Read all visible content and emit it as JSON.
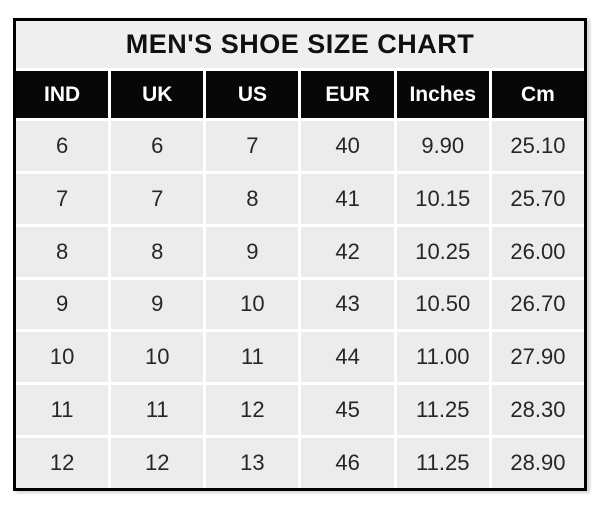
{
  "chart_data": {
    "type": "table",
    "title": "MEN'S SHOE SIZE CHART",
    "columns": [
      "IND",
      "UK",
      "US",
      "EUR",
      "Inches",
      "Cm"
    ],
    "rows": [
      [
        "6",
        "6",
        "7",
        "40",
        "9.90",
        "25.10"
      ],
      [
        "7",
        "7",
        "8",
        "41",
        "10.15",
        "25.70"
      ],
      [
        "8",
        "8",
        "9",
        "42",
        "10.25",
        "26.00"
      ],
      [
        "9",
        "9",
        "10",
        "43",
        "10.50",
        "26.70"
      ],
      [
        "10",
        "10",
        "11",
        "44",
        "11.00",
        "27.90"
      ],
      [
        "11",
        "11",
        "12",
        "45",
        "11.25",
        "28.30"
      ],
      [
        "12",
        "12",
        "13",
        "46",
        "11.25",
        "28.90"
      ]
    ],
    "layout": {
      "grid": "on",
      "legend": "none"
    },
    "colors": {
      "border": "#000000",
      "title_bg": "#efefef",
      "header_bg": "#070707",
      "header_text": "#ffffff",
      "row_bg": "#ececec",
      "grid_line": "#ffffff",
      "body_text": "#262626"
    }
  }
}
